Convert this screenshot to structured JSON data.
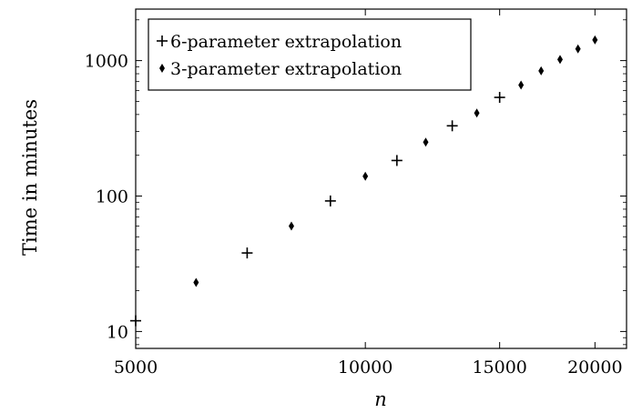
{
  "chart_data": {
    "type": "scatter",
    "xlabel": "n",
    "ylabel": "Time in minutes",
    "x_scale": "log",
    "y_scale": "log",
    "xlim": [
      5000,
      22000
    ],
    "ylim": [
      7.5,
      2400
    ],
    "grid": false,
    "legend_position": "top-left",
    "x_ticks": [
      {
        "value": 5000,
        "label": "5000"
      },
      {
        "value": 10000,
        "label": "10000"
      },
      {
        "value": 15000,
        "label": "15000"
      },
      {
        "value": 20000,
        "label": "20000"
      }
    ],
    "y_ticks": [
      {
        "value": 10,
        "label": "10"
      },
      {
        "value": 100,
        "label": "100"
      },
      {
        "value": 1000,
        "label": "1000"
      }
    ],
    "series": [
      {
        "name": "6-parameter extrapolation",
        "marker": "plus",
        "color": "#000000",
        "x": [
          5000,
          7000,
          9000,
          11000,
          13000,
          15000
        ],
        "y": [
          12,
          38,
          92,
          183,
          330,
          535
        ]
      },
      {
        "name": "3-parameter extrapolation",
        "marker": "diamond",
        "color": "#000000",
        "x": [
          6000,
          8000,
          10000,
          12000,
          14000,
          16000,
          17000,
          18000,
          19000,
          20000
        ],
        "y": [
          23,
          60,
          140,
          250,
          410,
          660,
          840,
          1020,
          1220,
          1420
        ]
      }
    ]
  }
}
